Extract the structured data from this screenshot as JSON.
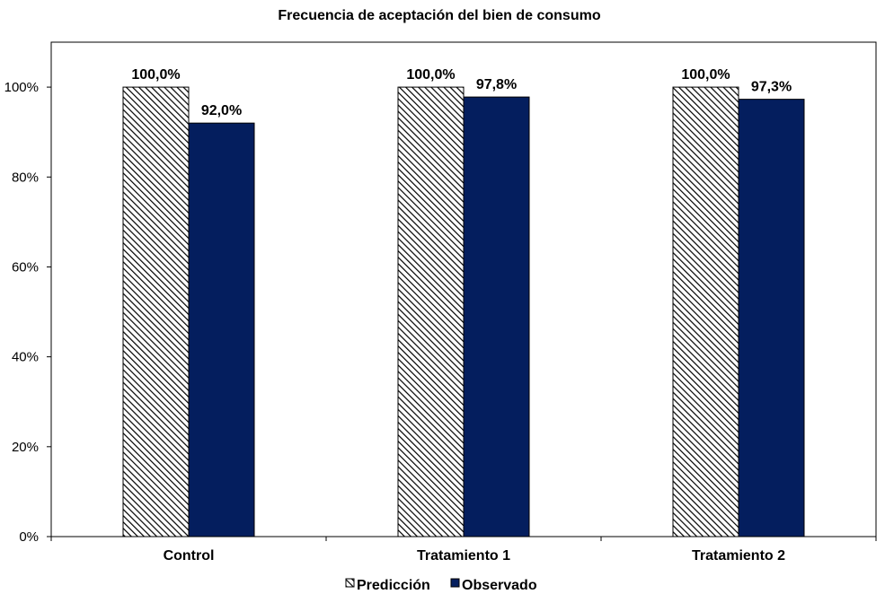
{
  "chart_data": {
    "type": "bar",
    "title": "Frecuencia de aceptación del bien de consumo",
    "xlabel": "",
    "ylabel": "",
    "categories": [
      "Control",
      "Tratamiento 1",
      "Tratamiento 2"
    ],
    "series": [
      {
        "name": "Predicción",
        "values": [
          100.0,
          100.0,
          100.0
        ],
        "labels": [
          "100,0%",
          "100,0%",
          "100,0%"
        ],
        "fill": "hatched",
        "color": "#000000"
      },
      {
        "name": "Observado",
        "values": [
          92.0,
          97.8,
          97.3
        ],
        "labels": [
          "92,0%",
          "97,8%",
          "97,3%"
        ],
        "fill": "solid",
        "color": "#041E5E"
      }
    ],
    "ylim": [
      0,
      110
    ],
    "yticks": [
      0,
      20,
      40,
      60,
      80,
      100
    ],
    "ytick_labels": [
      "0%",
      "20%",
      "40%",
      "60%",
      "80%",
      "100%"
    ],
    "grid": false,
    "legend_position": "bottom"
  }
}
